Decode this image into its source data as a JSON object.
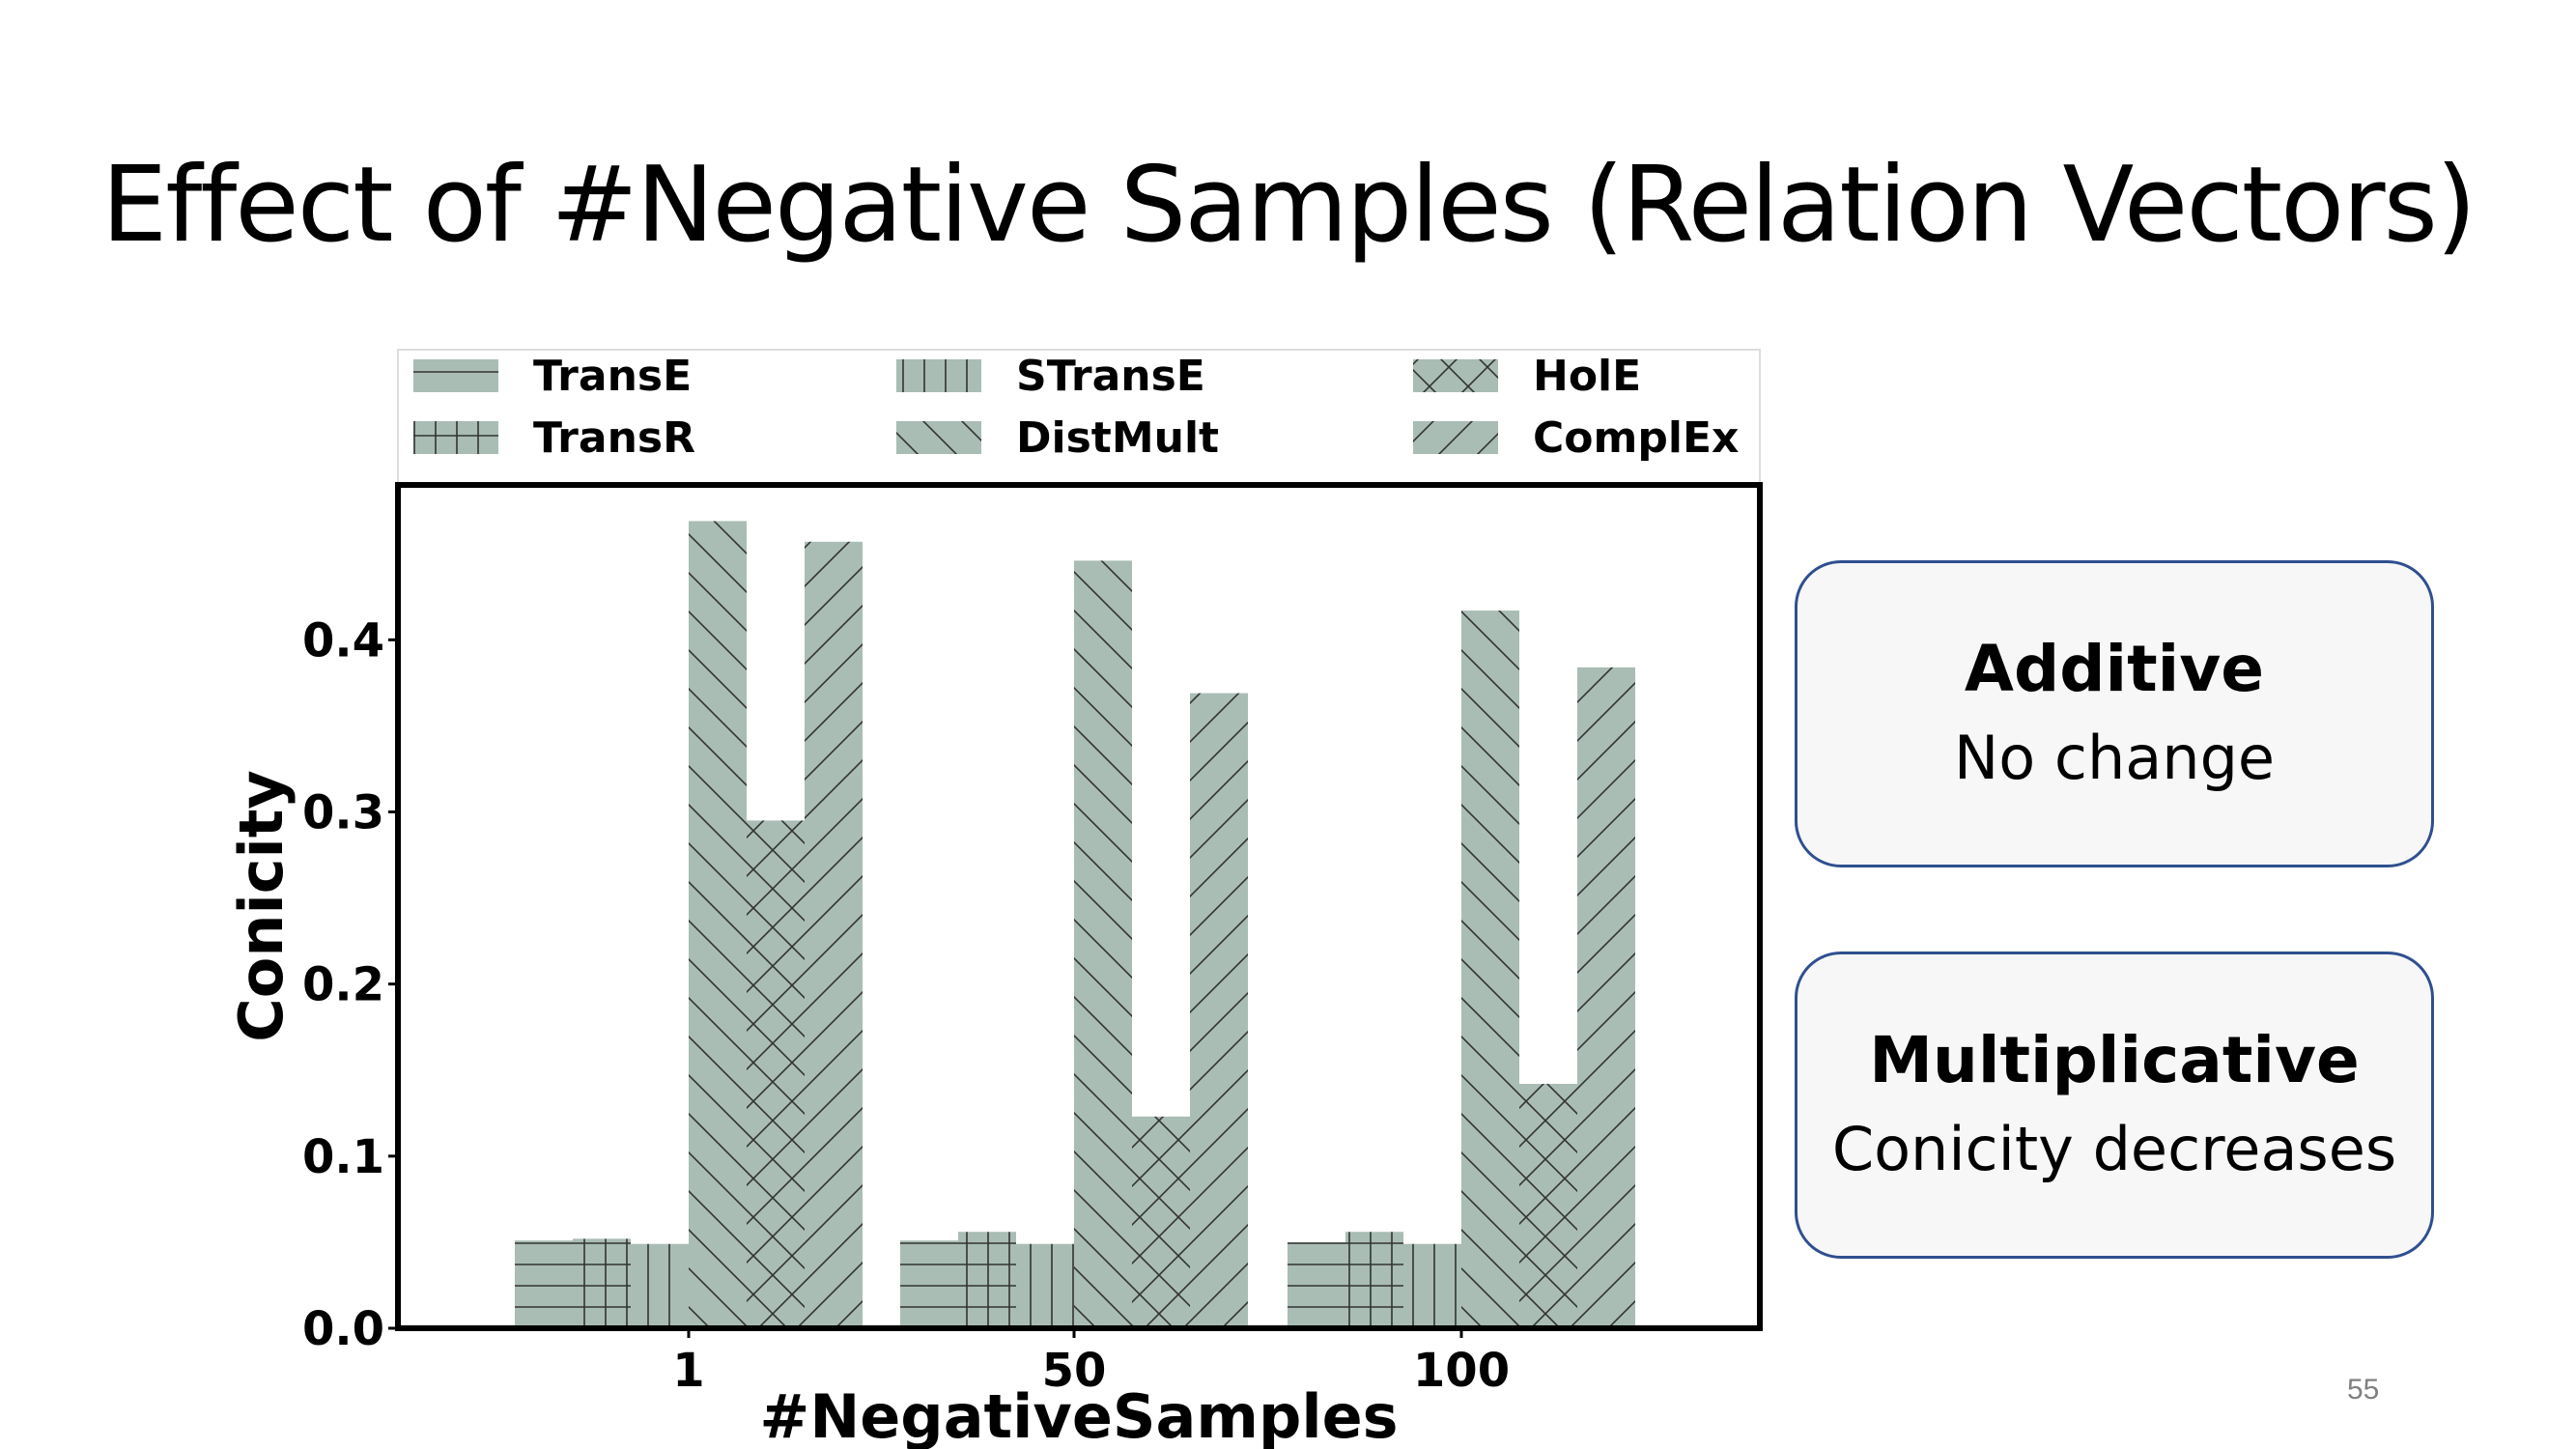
{
  "slide": {
    "title": "Effect of #Negative Samples (Relation Vectors)",
    "page_number": "55"
  },
  "boxes": [
    {
      "heading": "Additive",
      "text": "No change"
    },
    {
      "heading": "Multiplicative",
      "text": "Conicity decreases"
    }
  ],
  "chart_data": {
    "type": "bar",
    "xlabel": "#NegativeSamples",
    "ylabel": "Conicity",
    "categories": [
      "1",
      "50",
      "100"
    ],
    "yticks": [
      "0.0",
      "0.1",
      "0.2",
      "0.3",
      "0.4"
    ],
    "ylim": [
      0,
      0.49
    ],
    "grid": false,
    "legend_position": "top",
    "bar_color": "#a9bdb4",
    "series": [
      {
        "name": "TransE",
        "hatch": "horizontal",
        "values": [
          0.051,
          0.051,
          0.05
        ]
      },
      {
        "name": "TransR",
        "hatch": "grid",
        "values": [
          0.052,
          0.056,
          0.056
        ]
      },
      {
        "name": "STransE",
        "hatch": "vertical",
        "values": [
          0.049,
          0.049,
          0.049
        ]
      },
      {
        "name": "DistMult",
        "hatch": "backslash",
        "values": [
          0.469,
          0.446,
          0.417
        ]
      },
      {
        "name": "HolE",
        "hatch": "cross",
        "values": [
          0.295,
          0.123,
          0.142
        ]
      },
      {
        "name": "ComplEx",
        "hatch": "slash",
        "values": [
          0.457,
          0.369,
          0.384
        ]
      }
    ]
  }
}
